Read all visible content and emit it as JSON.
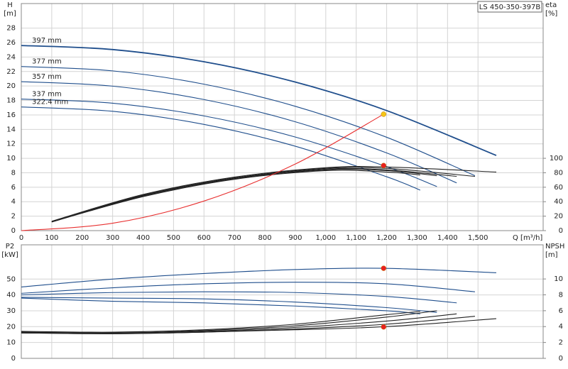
{
  "chart_data": [
    {
      "type": "line",
      "title": "LS 450-350-397B",
      "ylabel": "H",
      "yunit": "[m]",
      "y2label": "eta",
      "y2unit": "[%]",
      "xlabel": "Q [m³/h]",
      "xlim": [
        0,
        1714
      ],
      "ylim": [
        0,
        31.4
      ],
      "y2lim": [
        0,
        314
      ],
      "xticks": [
        0,
        100,
        200,
        300,
        400,
        500,
        600,
        700,
        800,
        900,
        {
          "value": 1000,
          "label": "1,000"
        },
        {
          "value": 1100,
          "label": "1,100"
        },
        {
          "value": 1200,
          "label": "1,200"
        },
        {
          "value": 1300,
          "label": "1,300"
        },
        {
          "value": 1400,
          "label": "1,400"
        },
        {
          "value": 1500,
          "label": "1,500"
        }
      ],
      "yticks": [
        0,
        2,
        4,
        6,
        8,
        10,
        12,
        14,
        16,
        18,
        20,
        22,
        24,
        26,
        28
      ],
      "y2ticks": [
        0,
        20,
        40,
        60,
        80,
        100
      ],
      "grid": true,
      "series": [
        {
          "name": "397 mm",
          "color": "#1f4e8c",
          "x": [
            0,
            300,
            600,
            900,
            1200,
            1560
          ],
          "values": [
            25.6,
            25.04,
            23.35,
            20.54,
            16.6,
            10.4
          ]
        },
        {
          "name": "377 mm",
          "color": "#1f4e8c",
          "x": [
            0,
            300,
            600,
            900,
            1200,
            1490
          ],
          "values": [
            22.7,
            22.09,
            20.25,
            17.19,
            12.91,
            7.6
          ]
        },
        {
          "name": "357 mm",
          "color": "#1f4e8c",
          "x": [
            0,
            300,
            600,
            900,
            1200,
            1430
          ],
          "values": [
            20.6,
            19.98,
            18.13,
            15.05,
            10.74,
            6.6
          ]
        },
        {
          "name": "337 mm",
          "color": "#1f4e8c",
          "x": [
            0,
            300,
            600,
            900,
            1200,
            1365
          ],
          "values": [
            18.2,
            17.62,
            15.86,
            12.94,
            8.84,
            6.1
          ]
        },
        {
          "name": "322.4 mm",
          "color": "#1f4e8c",
          "x": [
            0,
            300,
            600,
            900,
            1200,
            1310
          ],
          "values": [
            17.1,
            16.5,
            14.69,
            11.67,
            7.45,
            5.6
          ]
        },
        {
          "color": "#222222",
          "axis": "y2",
          "x": [
            100,
            400,
            700,
            1000,
            1200,
            1560
          ],
          "values": [
            13,
            50,
            74,
            87,
            88,
            81
          ]
        },
        {
          "color": "#222222",
          "axis": "y2",
          "x": [
            100,
            400,
            700,
            1000,
            1200,
            1490
          ],
          "values": [
            12,
            49,
            73,
            86,
            86,
            75
          ]
        },
        {
          "color": "#222222",
          "axis": "y2",
          "x": [
            100,
            400,
            700,
            1000,
            1200,
            1430
          ],
          "values": [
            12,
            48,
            72,
            85,
            84,
            75
          ]
        },
        {
          "color": "#222222",
          "axis": "y2",
          "x": [
            100,
            400,
            700,
            1000,
            1200,
            1365
          ],
          "values": [
            12,
            48,
            72,
            84,
            83,
            76
          ]
        },
        {
          "color": "#222222",
          "axis": "y2",
          "x": [
            100,
            400,
            700,
            1000,
            1200,
            1310
          ],
          "values": [
            12,
            47,
            71,
            83,
            81,
            77
          ]
        },
        {
          "color": "#e83030",
          "x": [
            0,
            300,
            600,
            900,
            1190
          ],
          "values": [
            0,
            1.02,
            4.09,
            9.21,
            16.1
          ]
        }
      ],
      "points": [
        {
          "x": 1190,
          "y": 16.1,
          "color": "#f5c518"
        },
        {
          "x": 1190,
          "y": 90,
          "color": "#e82020",
          "axis": "y2"
        }
      ]
    },
    {
      "type": "line",
      "ylabel": "P2",
      "yunit": "[kW]",
      "y2label": "NPSH",
      "y2unit": "[m]",
      "ylim": [
        0,
        71.6
      ],
      "y2lim": [
        0,
        14.3
      ],
      "yticks": [
        0,
        10,
        20,
        30,
        40,
        50
      ],
      "y2ticks": [
        0,
        2,
        4,
        6,
        8,
        10
      ],
      "grid": true,
      "series": [
        {
          "color": "#1f4e8c",
          "x": [
            0,
            300,
            600,
            900,
            1190,
            1560
          ],
          "values": [
            45,
            50,
            53.5,
            56,
            56.8,
            54
          ]
        },
        {
          "color": "#1f4e8c",
          "x": [
            0,
            300,
            600,
            900,
            1200,
            1490
          ],
          "values": [
            41,
            44.5,
            47,
            48,
            47,
            42
          ]
        },
        {
          "color": "#1f4e8c",
          "x": [
            0,
            300,
            600,
            900,
            1200,
            1430
          ],
          "values": [
            40,
            41.5,
            42,
            41.5,
            39,
            35
          ]
        },
        {
          "color": "#1f4e8c",
          "x": [
            0,
            300,
            600,
            900,
            1200,
            1365
          ],
          "values": [
            38.5,
            38,
            37.5,
            35.5,
            32,
            29
          ]
        },
        {
          "color": "#1f4e8c",
          "x": [
            0,
            300,
            600,
            900,
            1200,
            1310
          ],
          "values": [
            38,
            36,
            35,
            33,
            30,
            28
          ]
        },
        {
          "color": "#222222",
          "axis": "y2",
          "x": [
            0,
            300,
            600,
            900,
            1200,
            1560
          ],
          "values": [
            3.2,
            3.1,
            3.3,
            3.6,
            4,
            5
          ]
        },
        {
          "color": "#222222",
          "axis": "y2",
          "x": [
            0,
            300,
            600,
            900,
            1200,
            1490
          ],
          "values": [
            3.2,
            3.1,
            3.3,
            3.7,
            4.3,
            5.3
          ]
        },
        {
          "color": "#222222",
          "axis": "y2",
          "x": [
            0,
            300,
            600,
            900,
            1200,
            1430
          ],
          "values": [
            3.3,
            3.2,
            3.4,
            3.9,
            4.7,
            5.6
          ]
        },
        {
          "color": "#222222",
          "axis": "y2",
          "x": [
            0,
            300,
            600,
            900,
            1200,
            1365
          ],
          "values": [
            3.3,
            3.2,
            3.5,
            4.1,
            5.2,
            6
          ]
        },
        {
          "color": "#222222",
          "axis": "y2",
          "x": [
            0,
            300,
            600,
            900,
            1200,
            1310
          ],
          "values": [
            3.4,
            3.3,
            3.6,
            4.3,
            5.5,
            5.9
          ]
        }
      ],
      "points": [
        {
          "x": 1190,
          "y": 56.8,
          "color": "#e82020"
        },
        {
          "x": 1190,
          "y": 3.96,
          "color": "#e82020",
          "axis": "y2"
        }
      ]
    }
  ]
}
